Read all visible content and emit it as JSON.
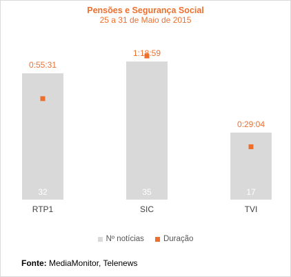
{
  "colors": {
    "bar": "#d9d9d9",
    "marker": "#ed6f2d",
    "title": "#ed6f2d",
    "bar_label": "#ffffff",
    "axis_label": "#404040"
  },
  "chart_data": {
    "type": "bar",
    "title": "Pensões e Segurança Social",
    "subtitle": "25 a 31 de Maio de 2015",
    "categories": [
      "RTP1",
      "SIC",
      "TVI"
    ],
    "series": [
      {
        "name": "Nº notícias",
        "kind": "bar",
        "values": [
          32,
          35,
          17
        ],
        "labels": [
          "32",
          "35",
          "17"
        ]
      },
      {
        "name": "Duração",
        "kind": "marker",
        "values_seconds": [
          3331,
          4739,
          1744
        ],
        "labels": [
          "0:55:31",
          "1:18:59",
          "0:29:04"
        ]
      }
    ],
    "legend_position": "bottom",
    "grid": false
  },
  "legend": {
    "items": [
      "Nº notícias",
      "Duração"
    ]
  },
  "source": {
    "label": "Fonte:",
    "text": "MediaMonitor, Telenews"
  }
}
